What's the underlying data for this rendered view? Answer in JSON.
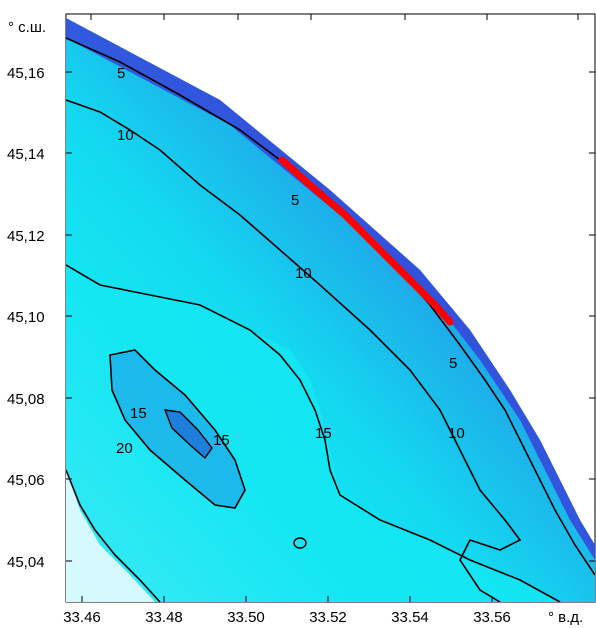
{
  "map": {
    "y_unit_label": "° с.ш.",
    "x_unit_label": "° в.д.",
    "x_ticks": [
      "33.46",
      "33.48",
      "33.50",
      "33.52",
      "33.54",
      "33.56"
    ],
    "y_ticks": [
      "45,16",
      "45,14",
      "45,12",
      "45,10",
      "45,08",
      "45,06",
      "45,04"
    ],
    "isobath_labels": {
      "a": "5",
      "b": "10",
      "c": "5",
      "d": "10",
      "e": "5",
      "f": "10",
      "g": "15",
      "h": "15",
      "i": "20",
      "j": "15"
    },
    "colors": {
      "shore_dark": "#3a36d8",
      "deep_blue": "#1f6fd8",
      "mid_blue": "#1fa6e8",
      "cyan": "#14e6f2",
      "pale": "#e8fbff",
      "contour": "#000000",
      "highlight": "#ff0000"
    }
  }
}
